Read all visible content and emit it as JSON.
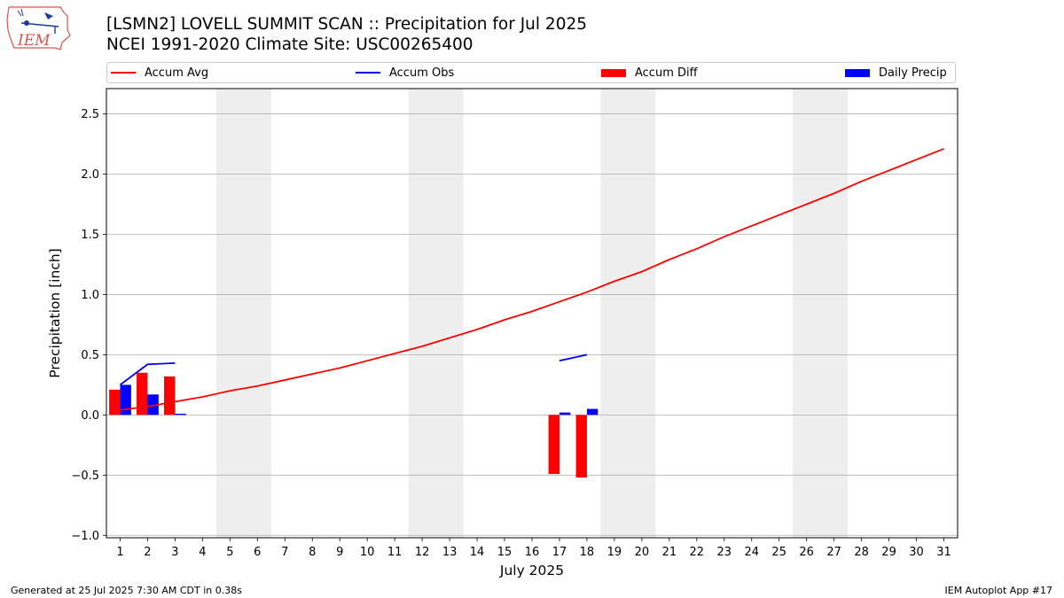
{
  "header": {
    "title_line1": "[LSMN2] LOVELL SUMMIT SCAN :: Precipitation for Jul 2025",
    "title_line2": "NCEI 1991-2020 Climate Site: USC00265400",
    "logo_text": "IEM"
  },
  "footer": {
    "generated": "Generated at 25 Jul 2025 7:30 AM CDT in 0.38s",
    "app": "IEM Autoplot App #17"
  },
  "colors": {
    "avg": "#ff0000",
    "obs": "#0000ff",
    "diff": "#ff0000",
    "daily": "#0000ff",
    "weekend_shade": "#eeeeee",
    "grid": "#b0b0b0"
  },
  "chart_data": {
    "type": "bar",
    "xlabel": "July 2025",
    "ylabel": "Precipitation [inch]",
    "xlim": [
      0.5,
      31.5
    ],
    "ylim": [
      -1.02,
      2.71
    ],
    "yticks": [
      -1.0,
      -0.5,
      0.0,
      0.5,
      1.0,
      1.5,
      2.0,
      2.5
    ],
    "ytick_labels": [
      "−1.0",
      "−0.5",
      "0.0",
      "0.5",
      "1.0",
      "1.5",
      "2.0",
      "2.5"
    ],
    "xticks": [
      1,
      2,
      3,
      4,
      5,
      6,
      7,
      8,
      9,
      10,
      11,
      12,
      13,
      14,
      15,
      16,
      17,
      18,
      19,
      20,
      21,
      22,
      23,
      24,
      25,
      26,
      27,
      28,
      29,
      30,
      31
    ],
    "xtick_labels": [
      "1",
      "2",
      "3",
      "4",
      "5",
      "6",
      "7",
      "8",
      "9",
      "10",
      "11",
      "12",
      "13",
      "14",
      "15",
      "16",
      "17",
      "18",
      "19",
      "20",
      "21",
      "22",
      "23",
      "24",
      "25",
      "26",
      "27",
      "28",
      "29",
      "30",
      "31"
    ],
    "grid": "horizontal",
    "legend_position": "top",
    "weekend_shading": [
      [
        5,
        6
      ],
      [
        12,
        13
      ],
      [
        19,
        20
      ],
      [
        26,
        27
      ]
    ],
    "series": [
      {
        "name": "Accum Avg",
        "kind": "line",
        "x": [
          1,
          2,
          3,
          4,
          5,
          6,
          7,
          8,
          9,
          10,
          11,
          12,
          13,
          14,
          15,
          16,
          17,
          18,
          19,
          20,
          21,
          22,
          23,
          24,
          25,
          26,
          27,
          28,
          29,
          30,
          31
        ],
        "values": [
          0.04,
          0.07,
          0.11,
          0.15,
          0.2,
          0.24,
          0.29,
          0.34,
          0.39,
          0.45,
          0.51,
          0.57,
          0.64,
          0.71,
          0.79,
          0.86,
          0.94,
          1.02,
          1.11,
          1.19,
          1.29,
          1.38,
          1.48,
          1.57,
          1.66,
          1.75,
          1.84,
          1.94,
          2.03,
          2.12,
          2.21
        ]
      },
      {
        "name": "Accum Obs",
        "kind": "line",
        "segments": [
          {
            "x": [
              1,
              2,
              3
            ],
            "values": [
              0.25,
              0.42,
              0.43
            ]
          },
          {
            "x": [
              17,
              18
            ],
            "values": [
              0.45,
              0.5
            ]
          }
        ]
      },
      {
        "name": "Accum Diff",
        "kind": "bar",
        "x": [
          1,
          2,
          3,
          17,
          18
        ],
        "values": [
          0.21,
          0.35,
          0.32,
          -0.49,
          -0.52
        ]
      },
      {
        "name": "Daily Precip",
        "kind": "bar",
        "x": [
          1,
          2,
          3,
          17,
          18
        ],
        "values": [
          0.25,
          0.17,
          0.01,
          0.02,
          0.05
        ]
      }
    ]
  }
}
